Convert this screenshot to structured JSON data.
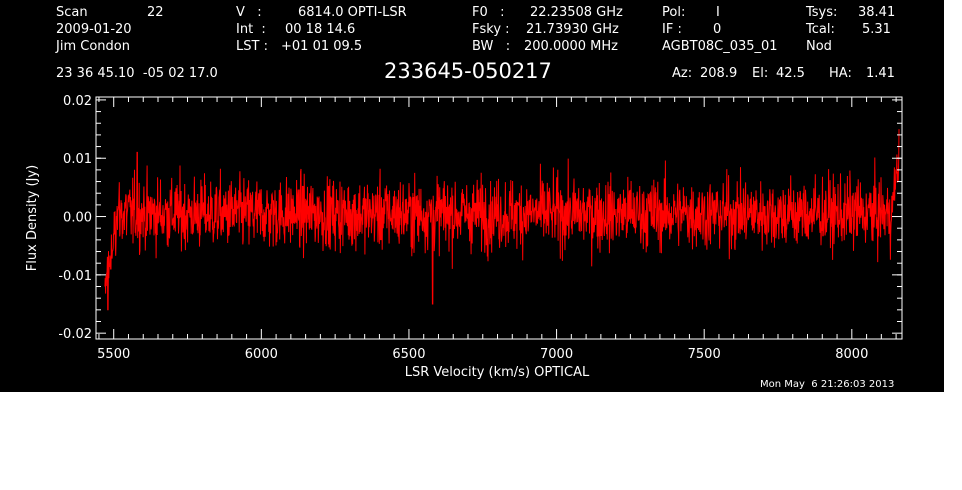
{
  "header": {
    "scan_label": "Scan",
    "scan_value": "22",
    "date": "2009-01-20",
    "observer": "Jim Condon",
    "v_label": "V   :",
    "v_value": "6814.0 OPTI-LSR",
    "int_label": "Int  :",
    "int_value": "00 18 14.6",
    "lst_label": "LST :",
    "lst_value": "+01 01 09.5",
    "f0_label": "F0   :",
    "f0_value": "22.23508 GHz",
    "fsky_label": "Fsky :",
    "fsky_value": "21.73930 GHz",
    "bw_label": "BW   :",
    "bw_value": "200.0000 MHz",
    "pol_label": "Pol:",
    "pol_value": "I",
    "if_label": "IF :",
    "if_value": "0",
    "project": "AGBT08C_035_01",
    "tsys_label": "Tsys:",
    "tsys_value": "38.41",
    "tcal_label": "Tcal:",
    "tcal_value": "5.31",
    "mode": "Nod",
    "coords": "23 36 45.10  -05 02 17.0",
    "az_label": "Az:",
    "az_value": "208.9",
    "el_label": "El:",
    "el_value": "42.5",
    "ha_label": "HA:",
    "ha_value": "1.41"
  },
  "timestamp": "Mon May  6 21:26:03 2013",
  "colors": {
    "background": "#000000",
    "axes": "#ffffff",
    "trace": "#ff0000"
  },
  "chart_data": {
    "type": "line",
    "title": "233645-050217",
    "xlabel": "LSR Velocity (km/s) OPTICAL",
    "ylabel": "Flux Density (Jy)",
    "xlim": [
      5440,
      8170
    ],
    "ylim": [
      -0.021,
      0.0205
    ],
    "xticks": [
      5500,
      6000,
      6500,
      7000,
      7500,
      8000
    ],
    "xtick_labels": [
      "5500",
      "6000",
      "6500",
      "7000",
      "7500",
      "8000"
    ],
    "yticks": [
      -0.02,
      -0.01,
      0.0,
      0.01,
      0.02
    ],
    "ytick_labels": [
      "-0.02",
      "-0.01",
      "0.00",
      "0.01",
      "0.02"
    ],
    "grid": false,
    "series": [
      {
        "x_range": [
          5470,
          8160
        ],
        "baseline_mean": 0.0005,
        "noise_rms": 0.003,
        "points": [
          {
            "x": 5470,
            "y": -0.012
          },
          {
            "x": 5480,
            "y": -0.016
          },
          {
            "x": 5490,
            "y": -0.009
          },
          {
            "x": 5500,
            "y": -0.003
          },
          {
            "x": 5510,
            "y": 0.0
          },
          {
            "x": 5580,
            "y": 0.011
          },
          {
            "x": 6580,
            "y": -0.015
          },
          {
            "x": 8150,
            "y": 0.008
          },
          {
            "x": 8160,
            "y": 0.015
          }
        ]
      }
    ]
  }
}
